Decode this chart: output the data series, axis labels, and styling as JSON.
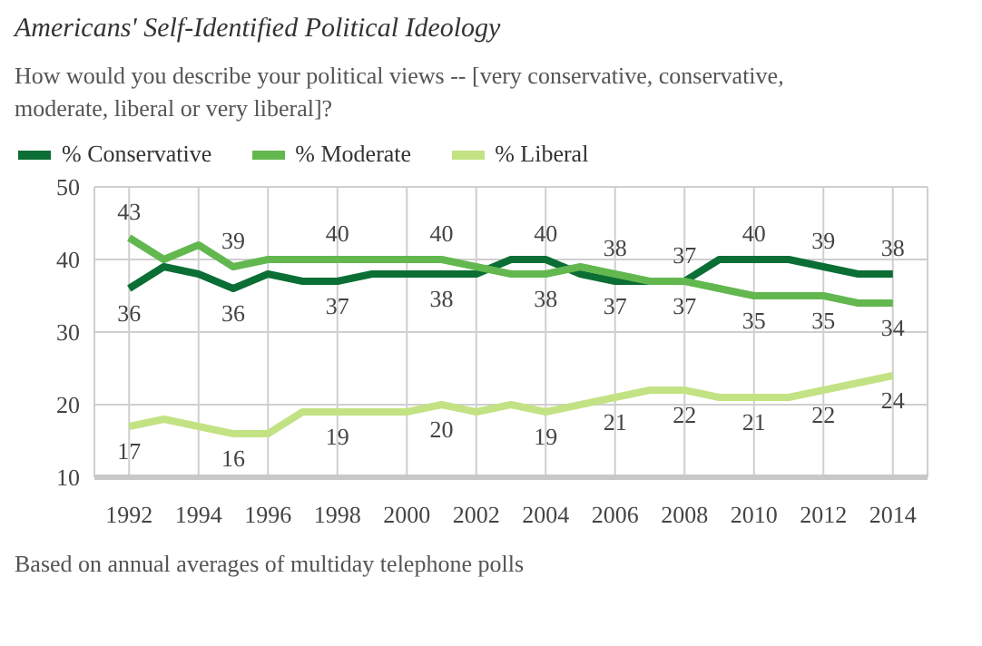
{
  "chart_data": {
    "type": "line",
    "title": "Americans' Self-Identified Political Ideology",
    "subtitle": "How would you describe your political views -- [very conservative, conservative, moderate, liberal or very liberal]?",
    "x": [
      1992,
      1993,
      1994,
      1995,
      1996,
      1997,
      1998,
      1999,
      2000,
      2001,
      2002,
      2003,
      2004,
      2005,
      2006,
      2007,
      2008,
      2009,
      2010,
      2011,
      2012,
      2013,
      2014
    ],
    "series": [
      {
        "name": "% Conservative",
        "color": "#0b6e34",
        "values": [
          36,
          39,
          38,
          36,
          38,
          37,
          37,
          38,
          38,
          38,
          38,
          40,
          40,
          38,
          37,
          37,
          37,
          40,
          40,
          40,
          39,
          38,
          38
        ],
        "value_labels": [
          "36",
          null,
          null,
          "36",
          null,
          null,
          "37",
          null,
          null,
          "38",
          null,
          null,
          "40",
          null,
          "37",
          null,
          "37",
          null,
          "40",
          null,
          "39",
          null,
          "38"
        ]
      },
      {
        "name": "% Moderate",
        "color": "#62b84f",
        "values": [
          43,
          40,
          42,
          39,
          40,
          40,
          40,
          40,
          40,
          40,
          39,
          38,
          38,
          39,
          38,
          37,
          37,
          36,
          35,
          35,
          35,
          34,
          34
        ],
        "value_labels": [
          "43",
          null,
          null,
          "39",
          null,
          null,
          "40",
          null,
          null,
          "40",
          null,
          null,
          "38",
          null,
          "38",
          null,
          "37",
          null,
          "35",
          null,
          "35",
          null,
          "34"
        ]
      },
      {
        "name": "% Liberal",
        "color": "#c3e283",
        "values": [
          17,
          18,
          17,
          16,
          16,
          19,
          19,
          19,
          19,
          20,
          19,
          20,
          19,
          20,
          21,
          22,
          22,
          21,
          21,
          21,
          22,
          23,
          24
        ],
        "value_labels": [
          "17",
          null,
          null,
          "16",
          null,
          null,
          "19",
          null,
          null,
          "20",
          null,
          null,
          "19",
          null,
          "21",
          null,
          "22",
          null,
          "21",
          null,
          "22",
          null,
          "24"
        ]
      }
    ],
    "xlim": [
      1991,
      2015
    ],
    "xticks": [
      1992,
      1994,
      1996,
      1998,
      2000,
      2002,
      2004,
      2006,
      2008,
      2010,
      2012,
      2014
    ],
    "ylim": [
      10,
      50
    ],
    "yticks": [
      10,
      20,
      30,
      40,
      50
    ],
    "grid": true,
    "legend": "top left",
    "marker": "none",
    "line_style": "solid",
    "annotations": [
      "Based on annual averages of multiday telephone polls"
    ]
  }
}
